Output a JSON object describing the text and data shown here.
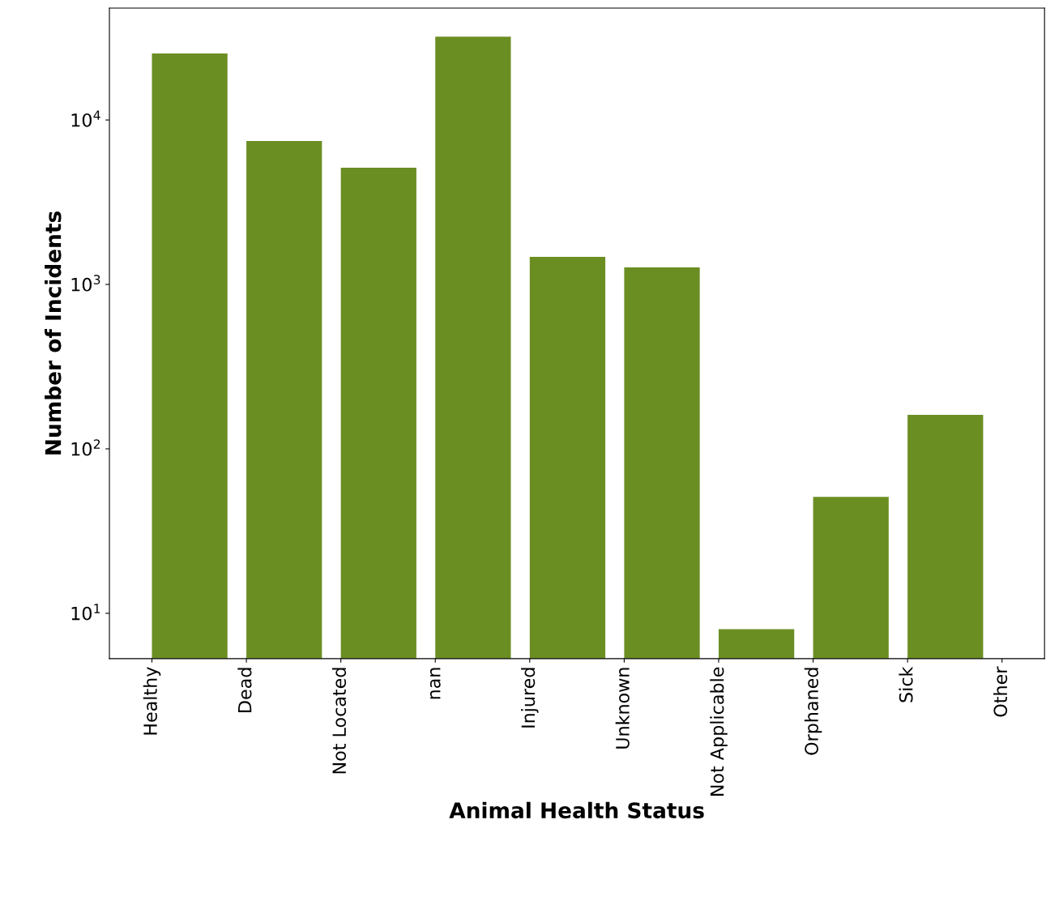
{
  "chart_data": {
    "type": "bar",
    "xlabel": "Animal Health Status",
    "ylabel": "Number of Incidents",
    "categories": [
      "Healthy",
      "Dead",
      "Not Located",
      "nan",
      "Injured",
      "Unknown",
      "Not Applicable",
      "Orphaned",
      "Sick",
      "Other"
    ],
    "values": [
      25400,
      7450,
      5120,
      32100,
      1470,
      1270,
      8,
      51,
      161,
      null
    ],
    "color": "#6b8e23",
    "log": "y",
    "ylim": [
      5.3,
      47900
    ],
    "yticks": [
      {
        "value": 10,
        "label": "10$^{1}$"
      },
      {
        "value": 100,
        "label": "10$^{2}$"
      },
      {
        "value": 1000,
        "label": "10$^{3}$"
      },
      {
        "value": 10000,
        "label": "10$^{4}$"
      }
    ],
    "grid": false,
    "legend": false
  }
}
